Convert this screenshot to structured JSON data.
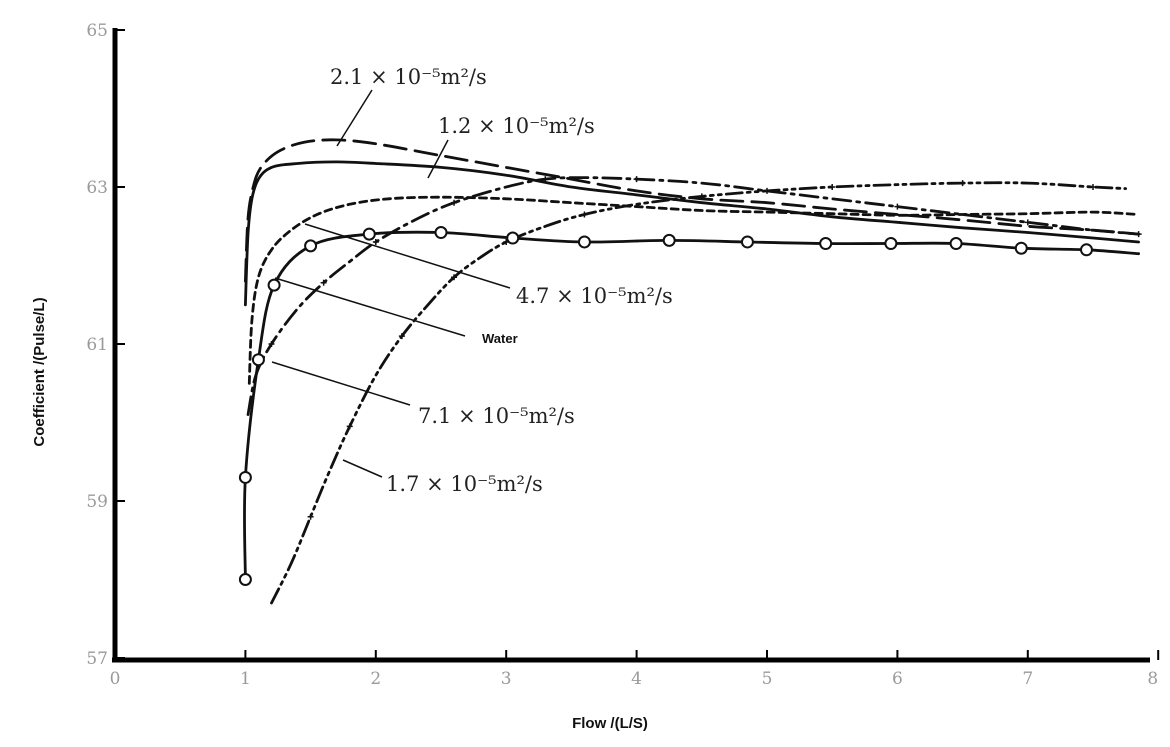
{
  "chart_data": {
    "type": "line",
    "xlabel": "Flow /(L/S)",
    "ylabel": "Coefficient /(Pulse/L)",
    "xlim": [
      0,
      8
    ],
    "ylim": [
      57,
      65
    ],
    "x_ticks": [
      "0",
      "1",
      "2",
      "3",
      "4",
      "5",
      "6",
      "7",
      "8"
    ],
    "y_ticks": [
      "57",
      "59",
      "61",
      "63",
      "65"
    ],
    "grid": false,
    "series": [
      {
        "name": "2.1 × 10⁻⁵m²/s",
        "style": "long-dash",
        "x": [
          1.0,
          1.02,
          1.06,
          1.12,
          1.25,
          1.45,
          1.7,
          2.0,
          2.5,
          3.0,
          3.5,
          4.0,
          4.5,
          5.0,
          5.5,
          6.0,
          6.5,
          7.0,
          7.5,
          7.85
        ],
        "y": [
          61.8,
          62.6,
          63.0,
          63.25,
          63.45,
          63.57,
          63.6,
          63.55,
          63.4,
          63.25,
          63.1,
          62.95,
          62.85,
          62.8,
          62.72,
          62.65,
          62.58,
          62.5,
          62.45,
          62.4
        ]
      },
      {
        "name": "1.2 × 10⁻⁵m²/s",
        "style": "solid",
        "x": [
          1.0,
          1.02,
          1.05,
          1.1,
          1.2,
          1.4,
          1.7,
          2.0,
          2.5,
          3.0,
          3.5,
          4.0,
          4.5,
          5.0,
          5.5,
          6.0,
          6.5,
          7.0,
          7.5,
          7.85
        ],
        "y": [
          61.5,
          62.4,
          62.85,
          63.1,
          63.25,
          63.3,
          63.32,
          63.3,
          63.25,
          63.15,
          63.0,
          62.9,
          62.8,
          62.72,
          62.62,
          62.55,
          62.48,
          62.42,
          62.35,
          62.3
        ]
      },
      {
        "name": "4.7 × 10⁻⁵m²/s",
        "style": "short-dash",
        "x": [
          1.03,
          1.05,
          1.1,
          1.2,
          1.35,
          1.55,
          1.8,
          2.1,
          2.5,
          3.0,
          3.5,
          4.0,
          4.5,
          5.0,
          5.5,
          6.0,
          6.5,
          7.0,
          7.5,
          7.85
        ],
        "y": [
          60.5,
          61.3,
          61.85,
          62.2,
          62.45,
          62.65,
          62.78,
          62.85,
          62.87,
          62.85,
          62.8,
          62.75,
          62.7,
          62.68,
          62.66,
          62.64,
          62.65,
          62.66,
          62.68,
          62.65
        ]
      },
      {
        "name": "Water",
        "style": "solid-markers",
        "x": [
          1.0,
          1.0,
          1.1,
          1.22,
          1.5,
          1.95,
          2.5,
          3.05,
          3.6,
          4.25,
          4.85,
          5.45,
          5.95,
          6.45,
          6.95,
          7.45,
          7.85
        ],
        "y": [
          58.0,
          59.3,
          60.8,
          61.75,
          62.25,
          62.4,
          62.42,
          62.35,
          62.3,
          62.32,
          62.3,
          62.28,
          62.28,
          62.28,
          62.22,
          62.2,
          62.15
        ],
        "markers": [
          true,
          true,
          true,
          true,
          true,
          true,
          true,
          true,
          true,
          true,
          true,
          true,
          true,
          true,
          true,
          true,
          false
        ]
      },
      {
        "name": "7.1 × 10⁻⁵m²/s",
        "style": "dash-dot",
        "x": [
          1.02,
          1.08,
          1.2,
          1.4,
          1.6,
          1.8,
          2.0,
          2.3,
          2.6,
          3.0,
          3.3,
          3.6,
          4.0,
          4.5,
          5.0,
          5.5,
          6.0,
          6.5,
          7.0,
          7.5,
          7.85
        ],
        "y": [
          60.1,
          60.6,
          61.0,
          61.45,
          61.78,
          62.05,
          62.3,
          62.58,
          62.8,
          63.0,
          63.1,
          63.12,
          63.1,
          63.05,
          62.95,
          62.85,
          62.75,
          62.65,
          62.55,
          62.45,
          62.4
        ]
      },
      {
        "name": "1.7 × 10⁻⁵m²/s",
        "style": "dash-dot-dot",
        "x": [
          1.2,
          1.35,
          1.5,
          1.65,
          1.8,
          2.0,
          2.2,
          2.4,
          2.6,
          2.8,
          3.0,
          3.3,
          3.6,
          4.0,
          4.5,
          5.0,
          5.5,
          6.0,
          6.5,
          7.0,
          7.5,
          7.75
        ],
        "y": [
          57.7,
          58.2,
          58.8,
          59.4,
          59.95,
          60.6,
          61.1,
          61.5,
          61.85,
          62.1,
          62.3,
          62.5,
          62.65,
          62.78,
          62.88,
          62.95,
          63.0,
          63.03,
          63.05,
          63.05,
          63.0,
          62.98
        ]
      }
    ]
  }
}
